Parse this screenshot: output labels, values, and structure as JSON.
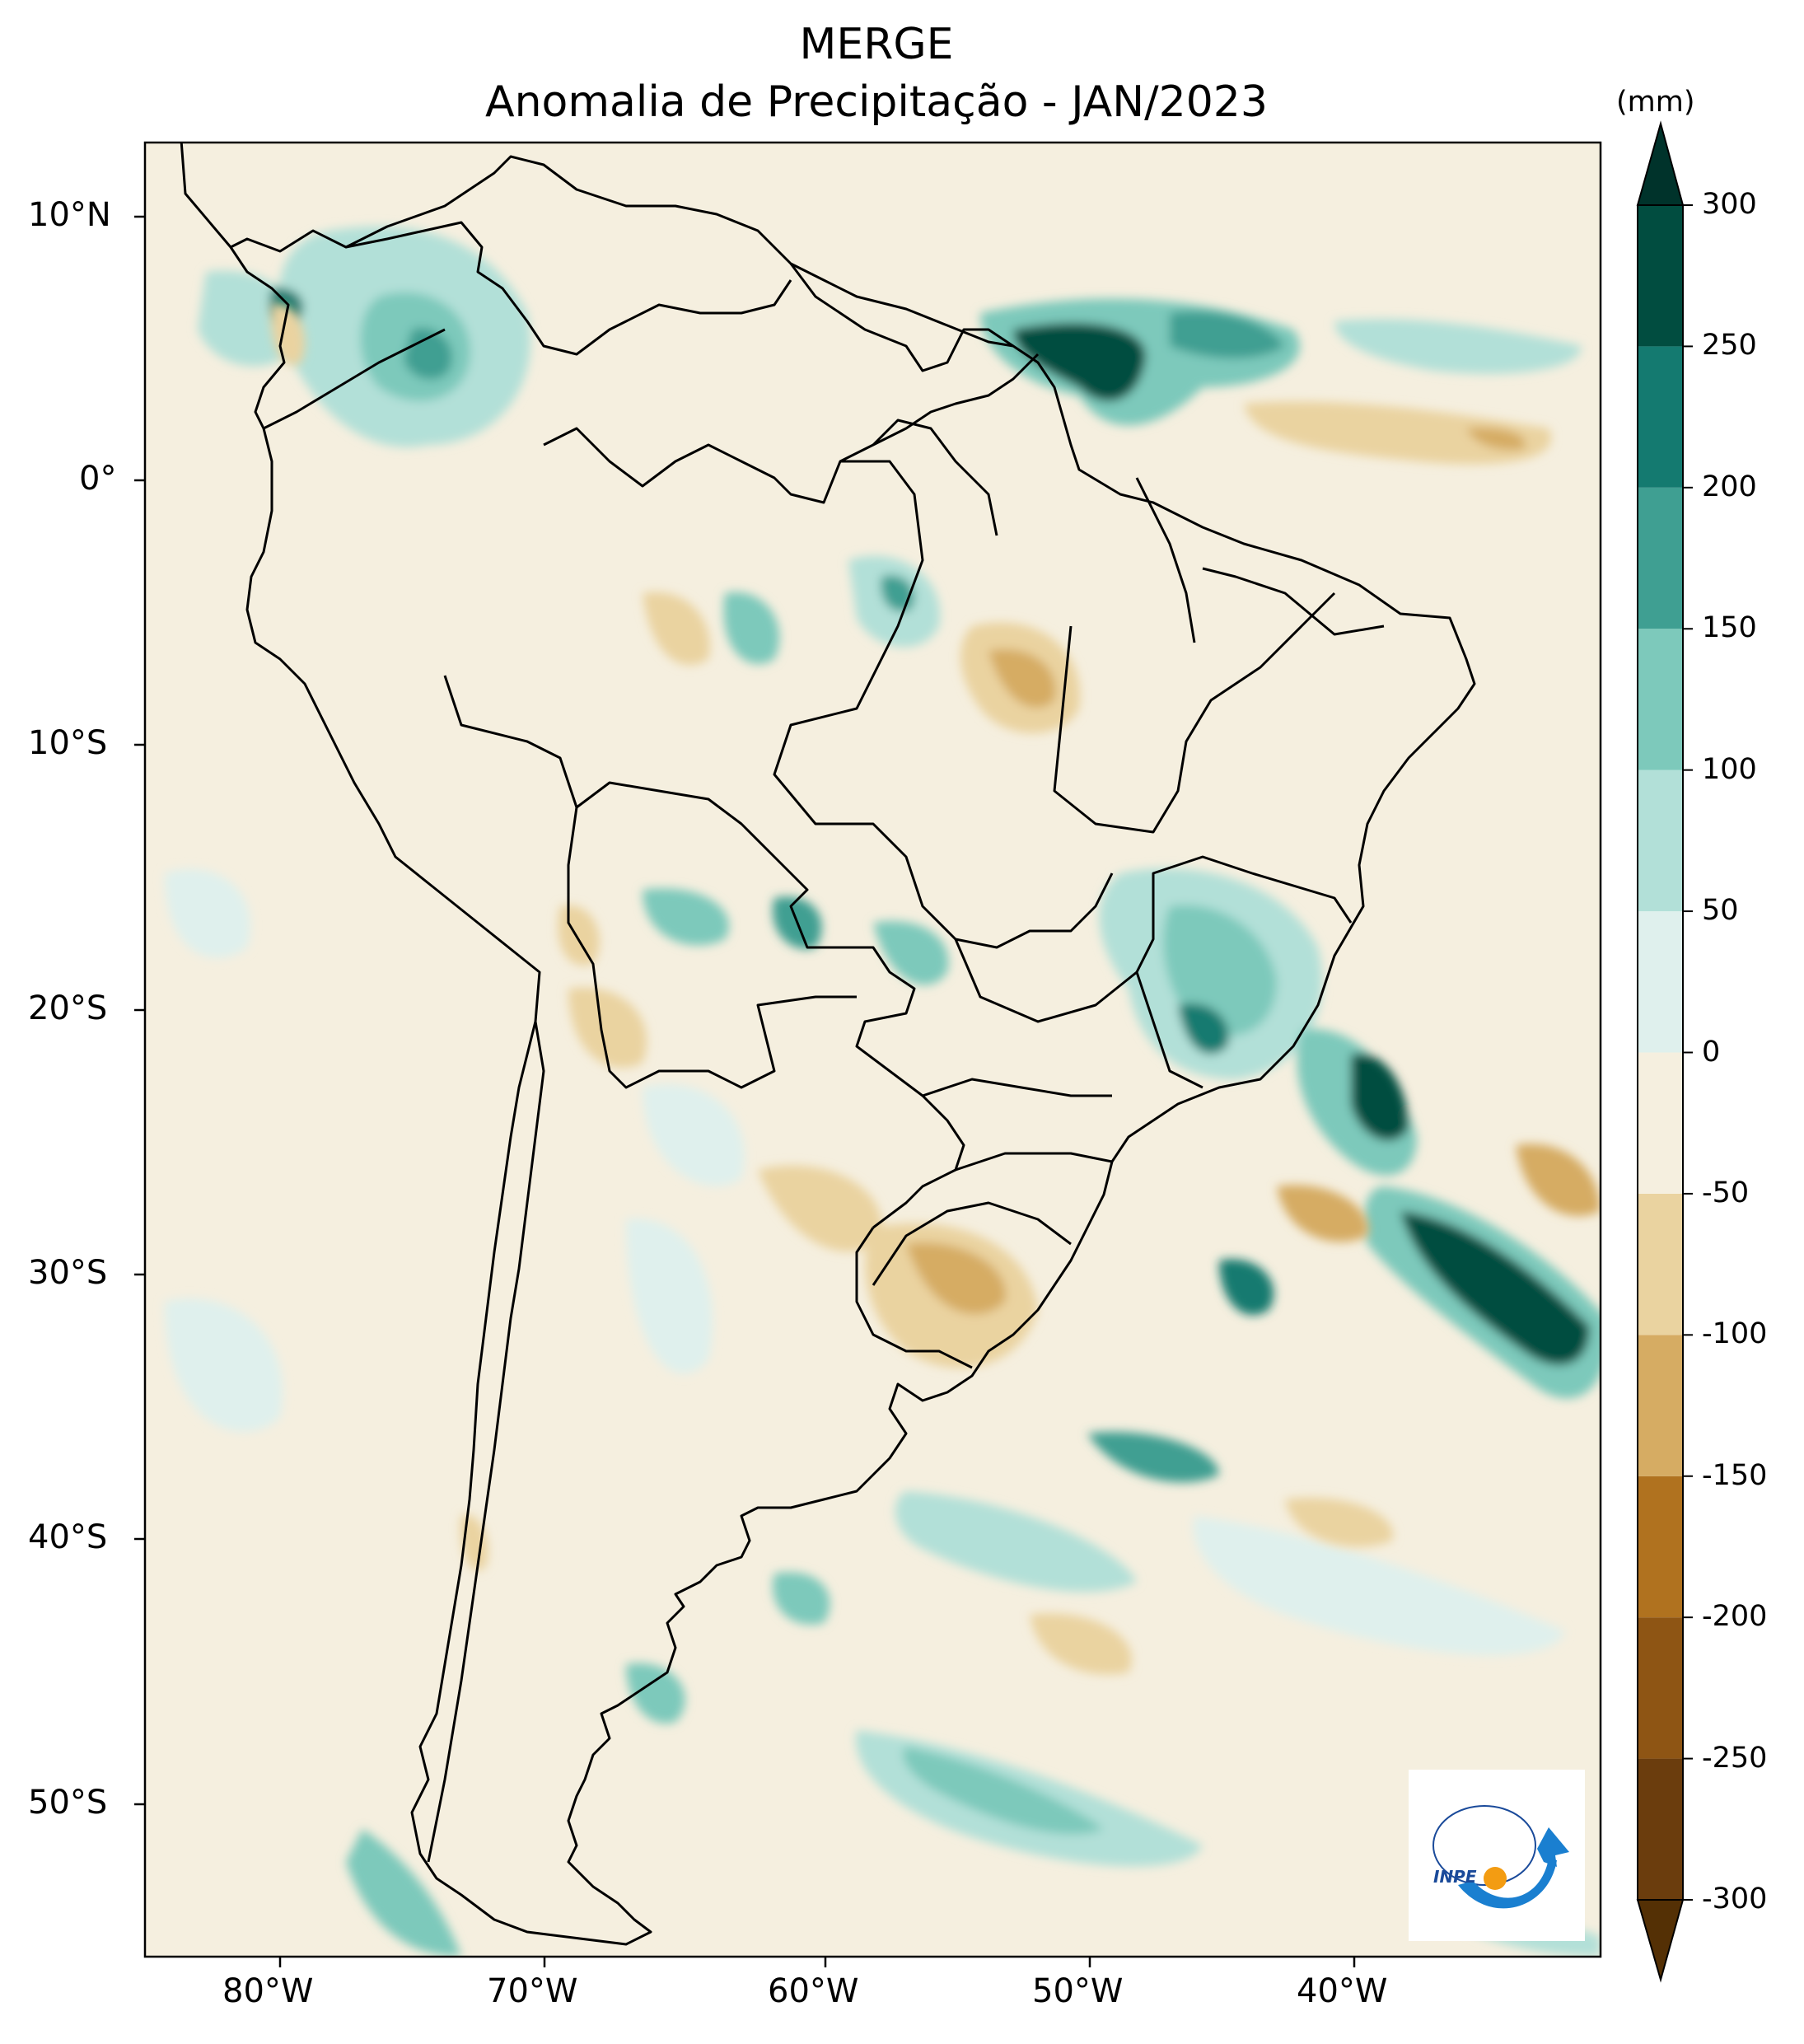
{
  "title": "MERGE",
  "subtitle": "Anomalia de Precipitação - JAN/2023",
  "colorbar": {
    "unit": "(mm)",
    "levels": [
      -300,
      -250,
      -200,
      -150,
      -100,
      -50,
      0,
      50,
      100,
      150,
      200,
      250,
      300
    ],
    "colors": [
      "#6b3d0d",
      "#8e5514",
      "#b0721f",
      "#d6ac63",
      "#ead3a0",
      "#f5efdf",
      "#dff0ed",
      "#b2e0d8",
      "#7dc9bb",
      "#3f9f92",
      "#147a70",
      "#014d40"
    ],
    "under_color": "#543005",
    "over_color": "#00332b"
  },
  "axes": {
    "lon_ticks": [
      {
        "label": "80°W",
        "value": -80
      },
      {
        "label": "70°W",
        "value": -70
      },
      {
        "label": "60°W",
        "value": -60
      },
      {
        "label": "50°W",
        "value": -50
      },
      {
        "label": "40°W",
        "value": -40
      }
    ],
    "lat_ticks": [
      {
        "label": "10°N",
        "value": 10
      },
      {
        "label": "0°",
        "value": 0
      },
      {
        "label": "10°S",
        "value": -10
      },
      {
        "label": "20°S",
        "value": -20
      },
      {
        "label": "30°S",
        "value": -30
      },
      {
        "label": "40°S",
        "value": -40
      },
      {
        "label": "50°S",
        "value": -50
      }
    ]
  },
  "logo": {
    "text": "INPE"
  }
}
